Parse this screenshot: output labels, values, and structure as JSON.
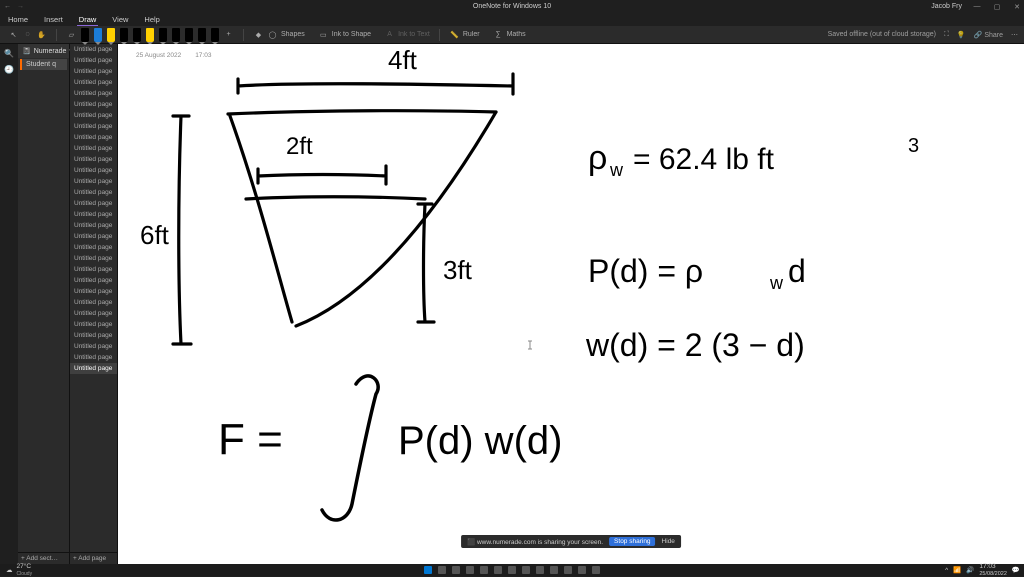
{
  "window": {
    "app_title": "OneNote for Windows 10",
    "user_name": "Jacob Fry",
    "save_status": "Saved offline (out of cloud storage)"
  },
  "menu": {
    "items": [
      "Home",
      "Insert",
      "Draw",
      "View",
      "Help"
    ],
    "active_index": 2
  },
  "ribbon": {
    "pen_colors": [
      "#000000",
      "#1c7cd6",
      "#ffd000",
      "#000000",
      "#000000",
      "#ffd000",
      "#000000",
      "#000000",
      "#000000",
      "#000000",
      "#000000"
    ],
    "tools": {
      "shapes": "Shapes",
      "ink_to_shape": "Ink to Shape",
      "ink_to_text": "Ink to Text",
      "ruler": "Ruler",
      "maths": "Maths"
    },
    "share": "Share"
  },
  "notebook": {
    "name": "Numerade",
    "section": "Student q",
    "pages": [
      "Untitled page",
      "Untitled page",
      "Untitled page",
      "Untitled page",
      "Untitled page",
      "Untitled page",
      "Untitled page",
      "Untitled page",
      "Untitled page",
      "Untitled page",
      "Untitled page",
      "Untitled page",
      "Untitled page",
      "Untitled page",
      "Untitled page",
      "Untitled page",
      "Untitled page",
      "Untitled page",
      "Untitled page",
      "Untitled page",
      "Untitled page",
      "Untitled page",
      "Untitled page",
      "Untitled page",
      "Untitled page",
      "Untitled page",
      "Untitled page",
      "Untitled page",
      "Untitled page",
      "Untitled page"
    ],
    "active_page_index": 29,
    "add_section": "+  Add sect…",
    "add_page": "+  Add page"
  },
  "page": {
    "date": "25 August 2022",
    "time": "17:03"
  },
  "ink_content": {
    "diagram": {
      "top_width_label": "4ft",
      "mid_width_label": "2ft",
      "left_height_label": "6ft",
      "right_height_label": "3ft"
    },
    "equations": {
      "density": "ρ_w = 62.4 lb ft³",
      "pressure": "P(d) = ρ_w d",
      "width_fn": "w(d) = 2(3−d)",
      "force": "F = ∫ P(d) w(d)"
    },
    "stroke_color": "#000000",
    "stroke_width": 3.2
  },
  "share_bar": {
    "message": "⬛  www.numerade.com is sharing your screen.",
    "stop": "Stop sharing",
    "hide": "Hide"
  },
  "taskbar": {
    "temp": "27°C",
    "cond": "Cloudy",
    "time": "17:03",
    "date": "25/08/2022"
  }
}
